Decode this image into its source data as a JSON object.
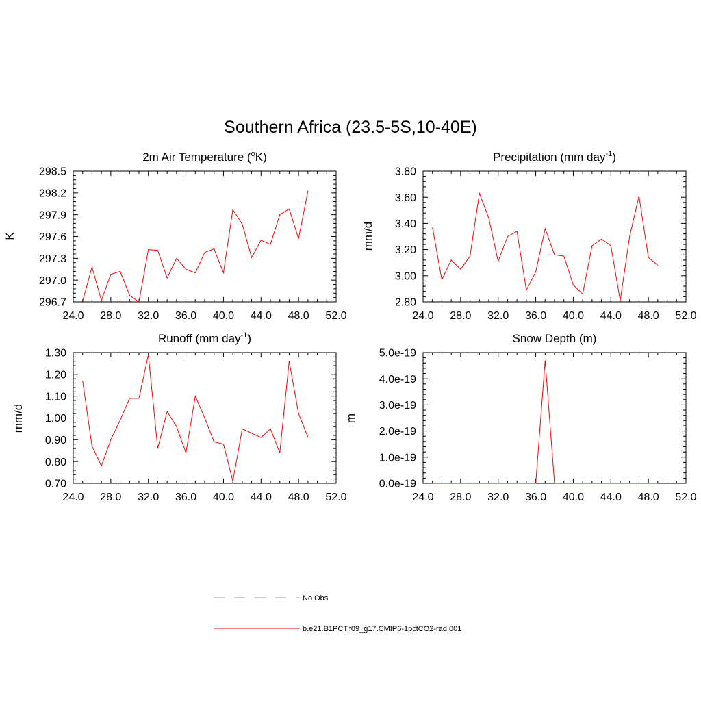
{
  "title": "Southern Africa (23.5-5S,10-40E)",
  "legend": [
    {
      "label": "No Obs",
      "color": "#9999ff",
      "dash": true
    },
    {
      "label": "b.e21.B1PCT.f09_g17.CMIP6-1pctCO2-rad.001",
      "color": "#ff0000",
      "dash": false
    }
  ],
  "chart_data": [
    {
      "type": "line",
      "title": "2m Air Temperature (",
      "title_sup": "o",
      "title_suffix": "K)",
      "ylabel": "K",
      "xlim": [
        24,
        52
      ],
      "ylim": [
        296.7,
        298.5
      ],
      "x_ticks": [
        "24.0",
        "28.0",
        "32.0",
        "36.0",
        "40.0",
        "44.0",
        "48.0",
        "52.0"
      ],
      "y_ticks": [
        "296.7",
        "297.0",
        "297.3",
        "297.6",
        "297.9",
        "298.2",
        "298.5"
      ],
      "color": "#ff0000",
      "x": [
        25,
        26,
        27,
        28,
        29,
        30,
        31,
        32,
        33,
        34,
        35,
        36,
        37,
        38,
        39,
        40,
        41,
        42,
        43,
        44,
        45,
        46,
        47,
        48,
        49
      ],
      "values": [
        296.71,
        297.18,
        296.72,
        297.08,
        297.12,
        296.79,
        296.7,
        297.42,
        297.41,
        297.03,
        297.3,
        297.15,
        297.1,
        297.38,
        297.43,
        297.1,
        297.97,
        297.77,
        297.31,
        297.55,
        297.49,
        297.9,
        297.98,
        297.57,
        298.23
      ]
    },
    {
      "type": "line",
      "title": "Precipitation (mm day",
      "title_sup": "-1",
      "title_suffix": ")",
      "ylabel": "mm/d",
      "xlim": [
        24,
        52
      ],
      "ylim": [
        2.8,
        3.8
      ],
      "x_ticks": [
        "24.0",
        "28.0",
        "32.0",
        "36.0",
        "40.0",
        "44.0",
        "48.0",
        "52.0"
      ],
      "y_ticks": [
        "2.80",
        "3.00",
        "3.20",
        "3.40",
        "3.60",
        "3.80"
      ],
      "color": "#ff0000",
      "x": [
        25,
        26,
        27,
        28,
        29,
        30,
        31,
        32,
        33,
        34,
        35,
        36,
        37,
        38,
        39,
        40,
        41,
        42,
        43,
        44,
        45,
        46,
        47,
        48,
        49
      ],
      "values": [
        3.37,
        2.97,
        3.12,
        3.05,
        3.15,
        3.63,
        3.44,
        3.11,
        3.3,
        3.34,
        2.89,
        3.03,
        3.36,
        3.16,
        3.15,
        2.93,
        2.86,
        3.23,
        3.28,
        3.23,
        2.81,
        3.3,
        3.61,
        3.14,
        3.08
      ]
    },
    {
      "type": "line",
      "title": "Runoff (mm day",
      "title_sup": "-1",
      "title_suffix": ")",
      "ylabel": "mm/d",
      "xlim": [
        24,
        52
      ],
      "ylim": [
        0.7,
        1.3
      ],
      "x_ticks": [
        "24.0",
        "28.0",
        "32.0",
        "36.0",
        "40.0",
        "44.0",
        "48.0",
        "52.0"
      ],
      "y_ticks": [
        "0.70",
        "0.80",
        "0.90",
        "1.00",
        "1.10",
        "1.20",
        "1.30"
      ],
      "color": "#ff0000",
      "x": [
        25,
        26,
        27,
        28,
        29,
        30,
        31,
        32,
        33,
        34,
        35,
        36,
        37,
        38,
        39,
        40,
        41,
        42,
        43,
        44,
        45,
        46,
        47,
        48,
        49
      ],
      "values": [
        1.17,
        0.87,
        0.78,
        0.9,
        0.99,
        1.09,
        1.09,
        1.29,
        0.86,
        1.03,
        0.96,
        0.84,
        1.1,
        1.0,
        0.89,
        0.88,
        0.71,
        0.95,
        0.93,
        0.91,
        0.95,
        0.84,
        1.26,
        1.02,
        0.91
      ]
    },
    {
      "type": "line",
      "title": "Snow Depth (m)",
      "title_sup": "",
      "title_suffix": "",
      "ylabel": "m",
      "xlim": [
        24,
        52
      ],
      "ylim": [
        0,
        5e-19
      ],
      "x_ticks": [
        "24.0",
        "28.0",
        "32.0",
        "36.0",
        "40.0",
        "44.0",
        "48.0",
        "52.0"
      ],
      "y_ticks": [
        "0.0e-19",
        "1.0e-19",
        "2.0e-19",
        "3.0e-19",
        "4.0e-19",
        "5.0e-19"
      ],
      "color": "#ff0000",
      "x": [
        25,
        26,
        27,
        28,
        29,
        30,
        31,
        32,
        33,
        34,
        35,
        36,
        37,
        38,
        39,
        40,
        41,
        42,
        43,
        44,
        45,
        46,
        47,
        48,
        49
      ],
      "values": [
        0,
        0,
        0,
        0,
        0,
        0,
        0,
        0,
        0,
        0,
        0,
        0,
        4.7e-19,
        0,
        0,
        0,
        0,
        0,
        0,
        0,
        0,
        0,
        0,
        0,
        0
      ]
    }
  ]
}
